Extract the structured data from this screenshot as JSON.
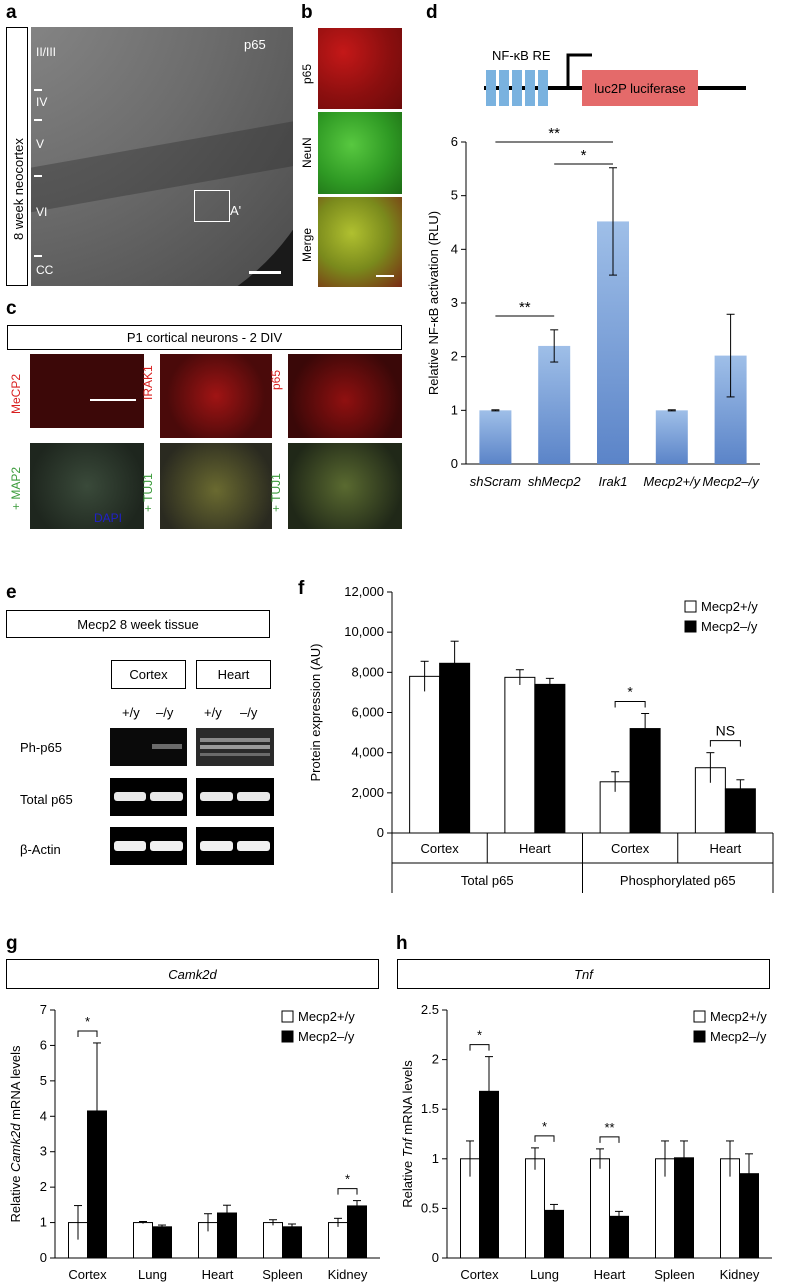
{
  "panel_labels": [
    "a",
    "b",
    "c",
    "d",
    "e",
    "f",
    "g",
    "h"
  ],
  "panel_a": {
    "side_label": "8 week neocortex",
    "stain": "p65",
    "layers": [
      "II/III",
      "IV",
      "V",
      "VI",
      "CC"
    ],
    "inset": "A'"
  },
  "panel_b": {
    "rows": [
      "p65",
      "NeuN",
      "Merge"
    ]
  },
  "panel_c": {
    "title": "P1 cortical neurons - 2 DIV",
    "top_labels": [
      "MeCP2",
      "IRAK1",
      "p65"
    ],
    "bottom_labels": [
      "+ MAP2",
      "+ TUJ1",
      "+ TUJ1"
    ],
    "dapi": "DAPI",
    "colors": {
      "red": "#d81e1e",
      "green": "#3a9a3a",
      "blue": "#2020c8"
    }
  },
  "panel_d_construct": {
    "re_label": "NF-κB RE",
    "reporter": "luc2P luciferase"
  },
  "panel_e": {
    "title": "Mecp2 8 week tissue",
    "tissues": [
      "Cortex",
      "Heart"
    ],
    "genotypes": [
      "+/y",
      "–/y",
      "+/y",
      "–/y"
    ],
    "rows": [
      "Ph-p65",
      "Total p65",
      "β-Actin"
    ]
  },
  "chart_data": [
    {
      "id": "d",
      "type": "bar",
      "categories": [
        "shScram",
        "shMecp2",
        "Irak1",
        "Mecp2+/y",
        "Mecp2–/y"
      ],
      "values": [
        1.0,
        2.2,
        4.52,
        1.0,
        2.02
      ],
      "errors": [
        0.01,
        0.3,
        1.0,
        0.01,
        0.77
      ],
      "ylabel": "Relative NF-κB activation (RLU)",
      "ylim": [
        0,
        6
      ],
      "yticks": [
        "0",
        "1",
        "2",
        "3",
        "4",
        "5",
        "6"
      ],
      "significance": [
        {
          "from": 0,
          "to": 2,
          "label": "**"
        },
        {
          "from": 1,
          "to": 2,
          "label": "*"
        },
        {
          "from": 0,
          "to": 1,
          "label": "**"
        }
      ],
      "bar_color": "#5b84c8"
    },
    {
      "id": "f",
      "type": "bar",
      "categories": [
        "Cortex",
        "Heart",
        "Cortex",
        "Heart"
      ],
      "groups": [
        "Total p65",
        "Phosphorylated p65"
      ],
      "series": [
        {
          "name": "Mecp2+/y",
          "values": [
            7800,
            7750,
            2550,
            3250
          ],
          "errors": [
            750,
            380,
            500,
            750
          ]
        },
        {
          "name": "Mecp2–/y",
          "values": [
            8450,
            7400,
            5200,
            2200
          ],
          "errors": [
            1100,
            300,
            750,
            450
          ]
        }
      ],
      "ylabel": "Protein expression (AU)",
      "ylim": [
        0,
        12000
      ],
      "yticks": [
        "0",
        "2,000",
        "4,000",
        "6,000",
        "8,000",
        "10,000",
        "12,000"
      ],
      "significance": [
        {
          "category": 2,
          "label": "*"
        },
        {
          "category": 3,
          "label": "NS"
        }
      ]
    },
    {
      "id": "g",
      "type": "bar",
      "title": "Camk2d",
      "categories": [
        "Cortex",
        "Lung",
        "Heart",
        "Spleen",
        "Kidney"
      ],
      "series": [
        {
          "name": "Mecp2+/y",
          "values": [
            1.0,
            1.0,
            1.0,
            1.0,
            1.0
          ],
          "errors": [
            0.48,
            0.03,
            0.25,
            0.08,
            0.12
          ]
        },
        {
          "name": "Mecp2–/y",
          "values": [
            4.15,
            0.88,
            1.27,
            0.88,
            1.47
          ],
          "errors": [
            1.92,
            0.05,
            0.22,
            0.08,
            0.15
          ]
        }
      ],
      "ylabel_prefix": "Relative ",
      "ylabel_gene": "Camk2d",
      "ylabel_suffix": " mRNA levels",
      "ylim": [
        0,
        7
      ],
      "yticks": [
        "0",
        "1",
        "2",
        "3",
        "4",
        "5",
        "6",
        "7"
      ],
      "significance": [
        {
          "category": 0,
          "label": "*"
        },
        {
          "category": 4,
          "label": "*"
        }
      ]
    },
    {
      "id": "h",
      "type": "bar",
      "title": "Tnf",
      "categories": [
        "Cortex",
        "Lung",
        "Heart",
        "Spleen",
        "Kidney"
      ],
      "series": [
        {
          "name": "Mecp2+/y",
          "values": [
            1.0,
            1.0,
            1.0,
            1.0,
            1.0
          ],
          "errors": [
            0.18,
            0.11,
            0.1,
            0.18,
            0.18
          ]
        },
        {
          "name": "Mecp2–/y",
          "values": [
            1.68,
            0.48,
            0.42,
            1.01,
            0.85
          ],
          "errors": [
            0.35,
            0.06,
            0.05,
            0.17,
            0.2
          ]
        }
      ],
      "ylabel_prefix": "Relative ",
      "ylabel_gene": "Tnf",
      "ylabel_suffix": " mRNA levels",
      "ylim": [
        0,
        2.5
      ],
      "yticks": [
        "0",
        "0.5",
        "1",
        "1.5",
        "2",
        "2.5"
      ],
      "significance": [
        {
          "category": 0,
          "label": "*"
        },
        {
          "category": 1,
          "label": "*"
        },
        {
          "category": 2,
          "label": "**"
        }
      ]
    }
  ]
}
